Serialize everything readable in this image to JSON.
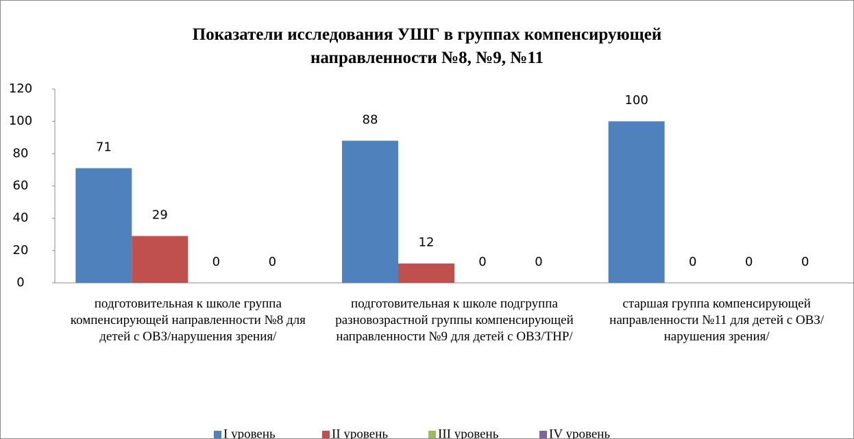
{
  "chart_data": {
    "type": "bar",
    "title": "Показатели исследования УШГ в группах компенсирующей направленности №8, №9, №11",
    "categories": [
      "подготовительная к школе группа компенсирующей направленности №8 для детей с ОВЗ/нарушения зрения/",
      "подготовительная к школе подгруппа разновозрастной группы компенсирующей направленности №9 для детей с ОВЗ/ТНР/",
      "старшая группа компенсирующей направленности №11 для детей с ОВЗ/нарушения зрения/"
    ],
    "series": [
      {
        "name": "I уровень",
        "color": "#4f81bd",
        "values": [
          71,
          88,
          100
        ]
      },
      {
        "name": "II уровень",
        "color": "#c0504d",
        "values": [
          29,
          12,
          0
        ]
      },
      {
        "name": "III уровень",
        "color": "#9bbb59",
        "values": [
          0,
          0,
          0
        ]
      },
      {
        "name": "IV уровень",
        "color": "#8064a2",
        "values": [
          0,
          0,
          0
        ]
      }
    ],
    "ylim": [
      0,
      120
    ],
    "yticks": [
      0,
      20,
      40,
      60,
      80,
      100,
      120
    ],
    "grid": false,
    "legend": "bottom"
  }
}
